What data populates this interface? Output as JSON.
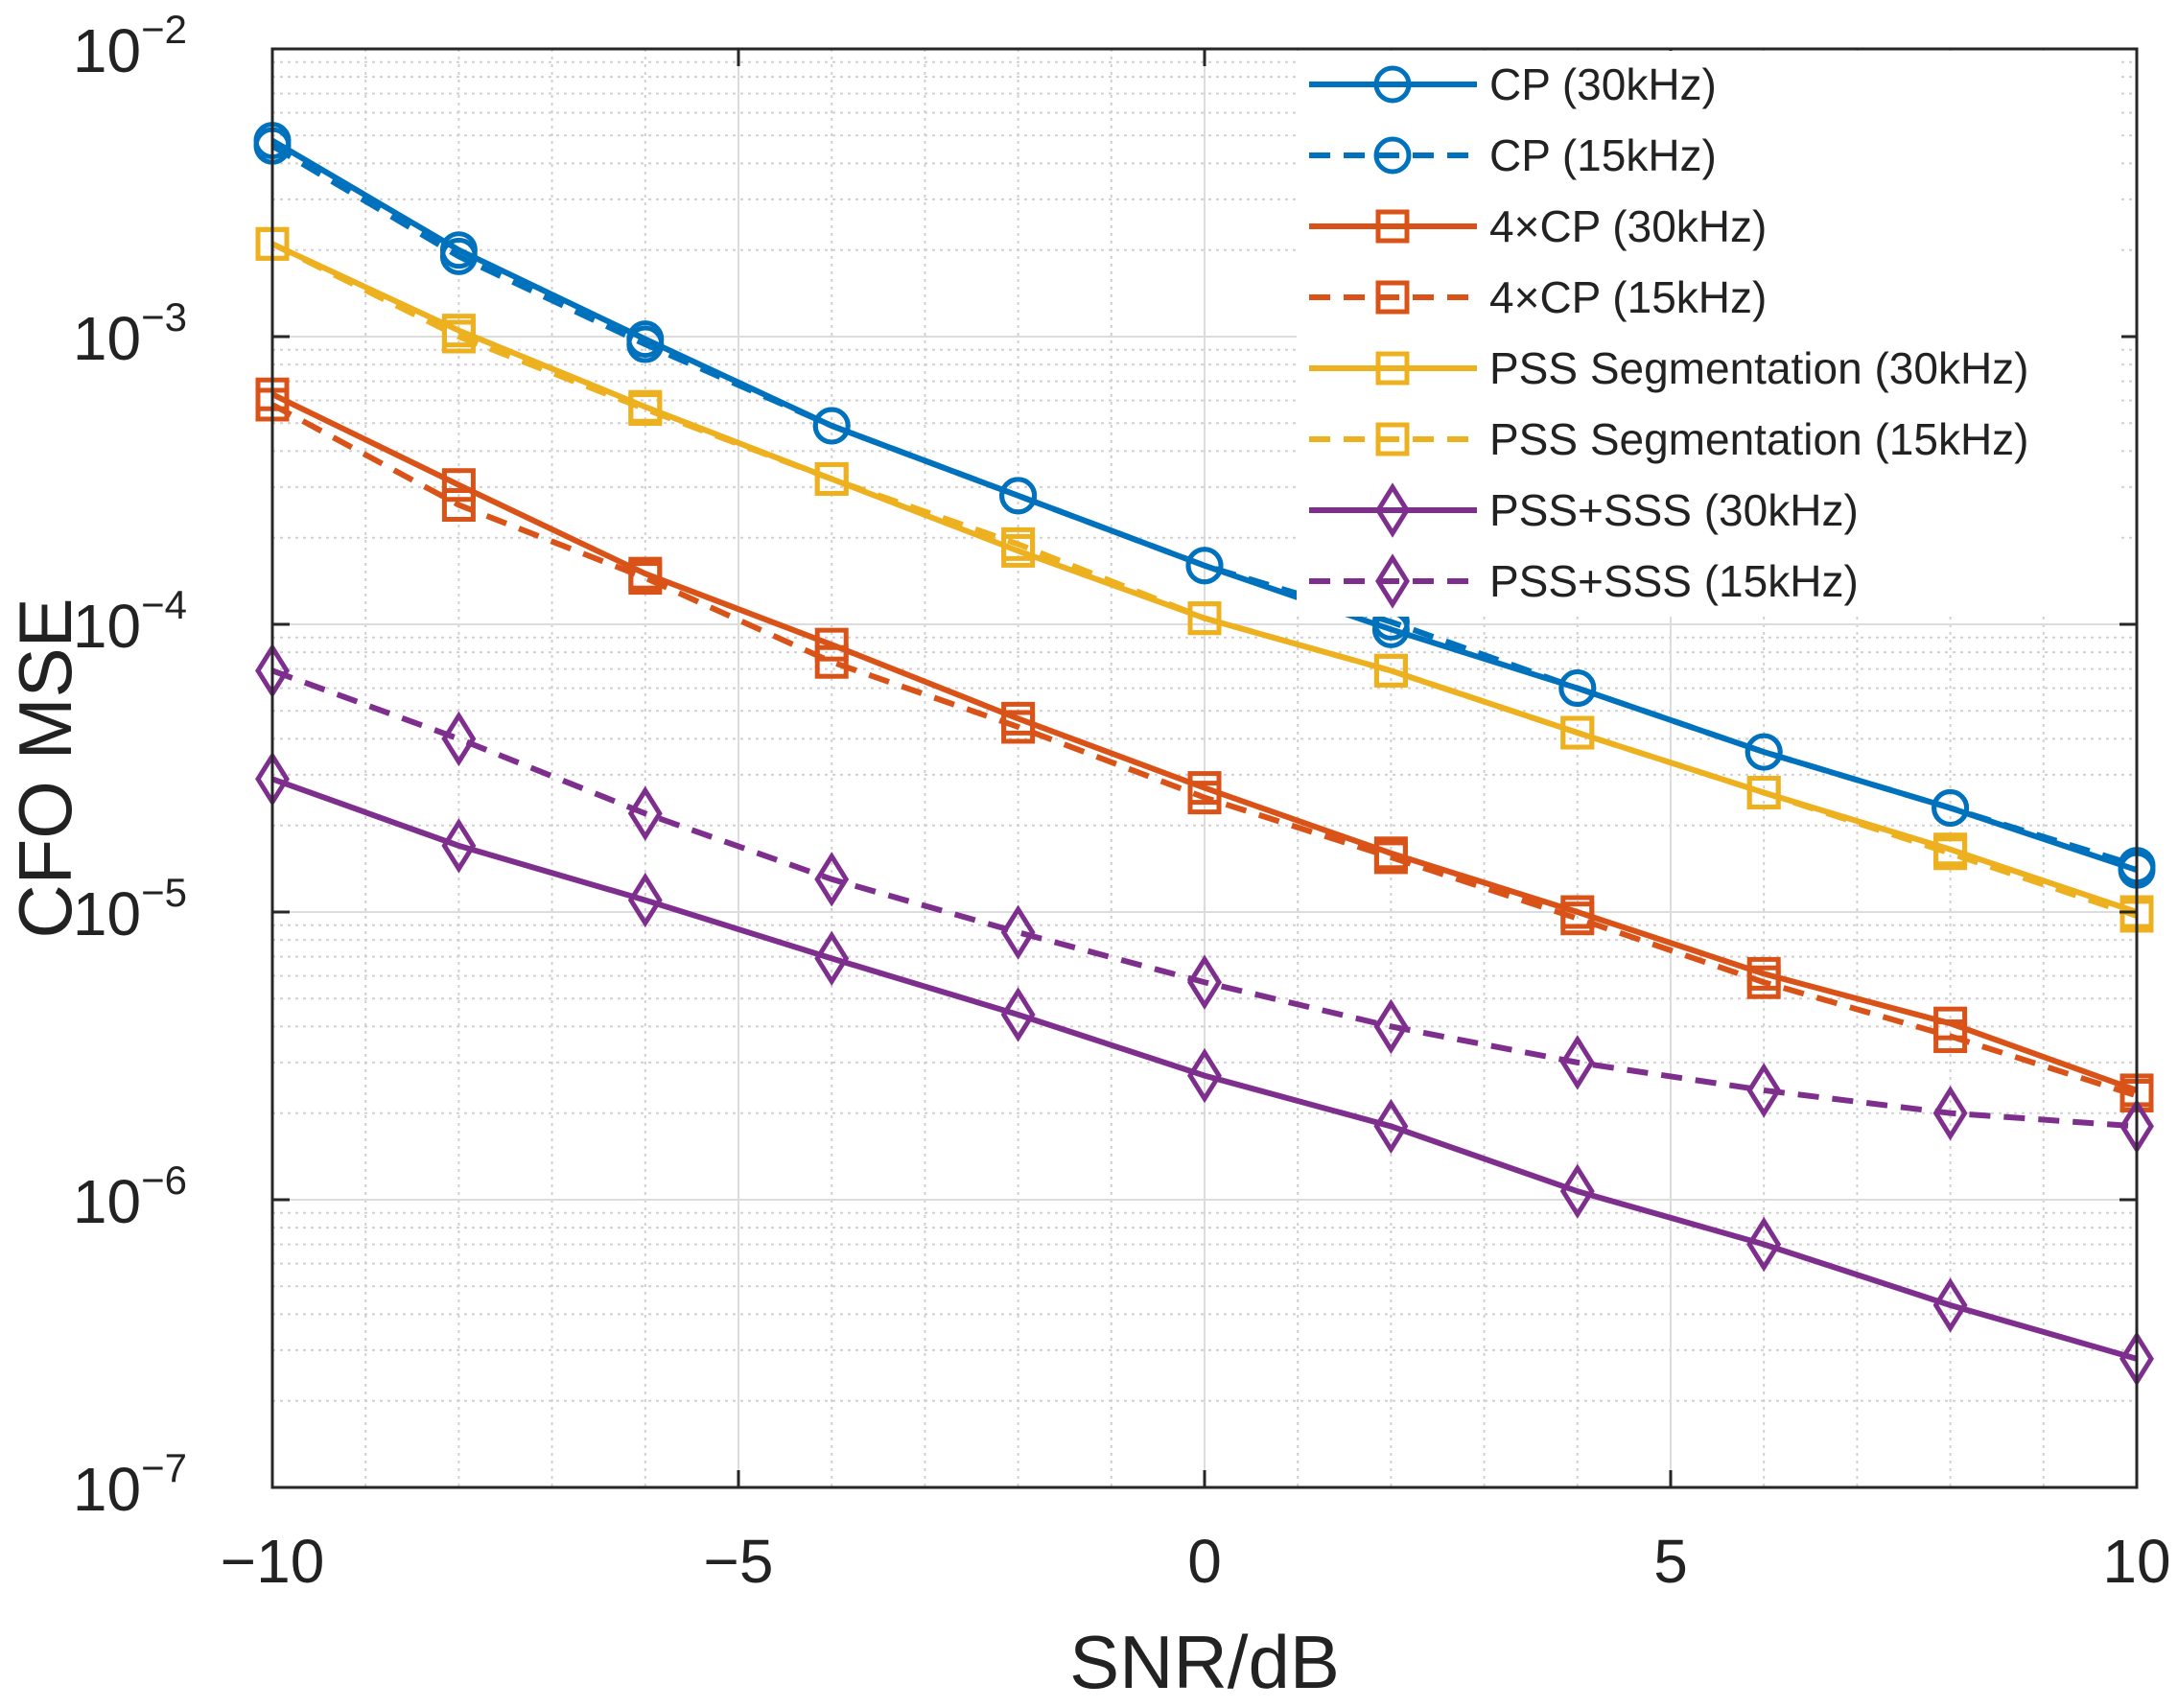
{
  "chart_data": {
    "type": "line",
    "title": "",
    "xlabel": "SNR/dB",
    "ylabel": "CFO MSE",
    "xlim": [
      -10,
      10
    ],
    "ylim": [
      1e-07,
      0.01
    ],
    "yscale": "log",
    "grid": true,
    "legend_position": "top-right",
    "xticks": [
      -10,
      -5,
      0,
      5,
      10
    ],
    "xtick_labels": [
      "−10",
      "−5",
      "0",
      "5",
      "10"
    ],
    "yticks": [
      0.01,
      0.001,
      0.0001,
      1e-05,
      1e-06,
      1e-07
    ],
    "ytick_base": "10",
    "ytick_exponents": [
      "−2",
      "−3",
      "−4",
      "−5",
      "−6",
      "−7"
    ],
    "x": [
      -10,
      -8,
      -6,
      -4,
      -2,
      0,
      2,
      4,
      6,
      8,
      10
    ],
    "series": [
      {
        "name": "CP (30kHz)",
        "color": "#0072BD",
        "dash": "solid",
        "marker": "circle",
        "values": [
          0.0048,
          0.002,
          0.00098,
          0.00049,
          0.00028,
          0.00016,
          9.6e-05,
          6e-05,
          3.6e-05,
          2.3e-05,
          1.4e-05
        ]
      },
      {
        "name": "CP (15kHz)",
        "color": "#0072BD",
        "dash": "dashed",
        "marker": "circle",
        "values": [
          0.0046,
          0.0019,
          0.00094,
          0.00049,
          0.00028,
          0.00016,
          0.000102,
          6e-05,
          3.6e-05,
          2.3e-05,
          1.45e-05
        ]
      },
      {
        "name": "4×CP (30kHz)",
        "color": "#D95319",
        "dash": "solid",
        "marker": "square",
        "values": [
          0.00063,
          0.000305,
          0.00015,
          8.5e-05,
          4.7e-05,
          2.7e-05,
          1.6e-05,
          1e-05,
          6.1e-06,
          4.1e-06,
          2.4e-06
        ]
      },
      {
        "name": "4×CP (15kHz)",
        "color": "#D95319",
        "dash": "dashed",
        "marker": "square",
        "values": [
          0.00058,
          0.00026,
          0.000145,
          7.4e-05,
          4.4e-05,
          2.5e-05,
          1.55e-05,
          9.5e-06,
          5.7e-06,
          3.7e-06,
          2.3e-06
        ]
      },
      {
        "name": "PSS Segmentation (30kHz)",
        "color": "#EDB120",
        "dash": "solid",
        "marker": "square",
        "values": [
          0.0021,
          0.00105,
          0.00057,
          0.00032,
          0.00018,
          0.000105,
          6.9e-05,
          4.2e-05,
          2.6e-05,
          1.65e-05,
          1e-05
        ]
      },
      {
        "name": "PSS Segmentation (15kHz)",
        "color": "#EDB120",
        "dash": "dashed",
        "marker": "square",
        "values": [
          0.0021,
          0.001,
          0.00056,
          0.00032,
          0.00019,
          0.000105,
          6.9e-05,
          4.2e-05,
          2.6e-05,
          1.6e-05,
          9.7e-06
        ]
      },
      {
        "name": "PSS+SSS (30kHz)",
        "color": "#7E2F8E",
        "dash": "solid",
        "marker": "diamond",
        "values": [
          2.9e-05,
          1.7e-05,
          1.1e-05,
          6.9e-06,
          4.4e-06,
          2.7e-06,
          1.8e-06,
          1.07e-06,
          7e-07,
          4.3e-07,
          2.8e-07
        ]
      },
      {
        "name": "PSS+SSS (15kHz)",
        "color": "#7E2F8E",
        "dash": "dashed",
        "marker": "diamond",
        "values": [
          6.9e-05,
          4e-05,
          2.2e-05,
          1.3e-05,
          8.5e-06,
          5.7e-06,
          4e-06,
          3e-06,
          2.4e-06,
          2e-06,
          1.8e-06
        ]
      }
    ]
  }
}
